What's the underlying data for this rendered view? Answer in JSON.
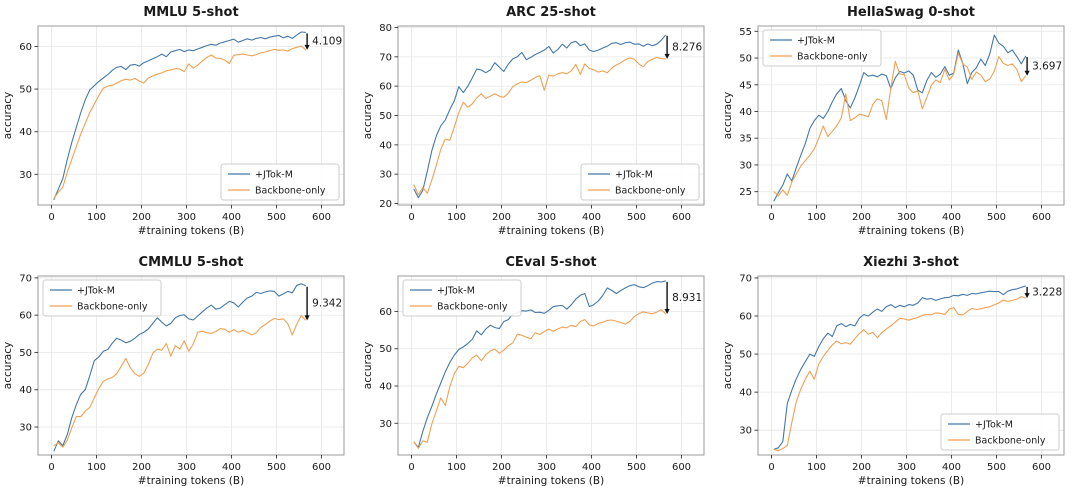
{
  "figure": {
    "xlabel": "#training tokens (B)",
    "ylabel": "accuracy",
    "series_labels": [
      "+JTok-M",
      "Backbone-only"
    ],
    "series_colors": [
      "#4578a8",
      "#f0a154"
    ],
    "grid_color": "#e9e9e9",
    "spine_color": "#9b9b9b",
    "annotation_color": "#111111"
  },
  "chart_data": [
    {
      "type": "line",
      "title": "MMLU 5-shot",
      "xlabel": "#training tokens (B)",
      "ylabel": "accuracy",
      "x": {
        "start": 5,
        "step": 10,
        "count": 57
      },
      "xlim": [
        -30,
        650
      ],
      "ylim": [
        22.8,
        64.8
      ],
      "xticks": [
        0,
        100,
        200,
        300,
        400,
        500,
        600
      ],
      "yticks": [
        30,
        40,
        50,
        60
      ],
      "legend_position": "lower-right",
      "annotation": {
        "label": "4.109",
        "x": 568
      },
      "series": [
        {
          "name": "+JTok-M",
          "color": "#4578a8",
          "y": [
            24.0,
            26.5,
            29.0,
            33.5,
            37.5,
            41.0,
            44.5,
            47.5,
            49.8,
            50.8,
            51.8,
            52.6,
            53.4,
            54.4,
            55.1,
            55.3,
            54.6,
            55.6,
            55.8,
            55.4,
            56.2,
            56.6,
            57.1,
            57.6,
            58.2,
            57.6,
            58.7,
            59.0,
            59.3,
            58.8,
            59.2,
            59.0,
            59.4,
            59.8,
            60.2,
            60.5,
            60.3,
            60.8,
            61.1,
            61.4,
            61.7,
            61.0,
            61.4,
            61.8,
            61.5,
            61.9,
            62.1,
            61.8,
            62.2,
            62.4,
            62.6,
            62.0,
            62.4,
            61.9,
            62.7,
            63.4,
            63.3
          ]
        },
        {
          "name": "Backbone-only",
          "color": "#f0a154",
          "y": [
            24.3,
            25.8,
            27.0,
            30.5,
            33.5,
            36.5,
            39.5,
            42.0,
            44.5,
            46.5,
            48.5,
            50.2,
            50.7,
            50.9,
            51.4,
            52.0,
            52.3,
            52.1,
            52.5,
            51.9,
            51.4,
            52.6,
            53.1,
            53.5,
            53.8,
            54.3,
            54.5,
            54.8,
            54.7,
            54.1,
            55.9,
            54.9,
            55.6,
            56.6,
            57.4,
            58.0,
            57.3,
            57.2,
            56.8,
            56.0,
            57.9,
            58.1,
            58.2,
            58.0,
            57.8,
            58.1,
            58.5,
            58.7,
            59.0,
            59.3,
            59.1,
            59.2,
            58.9,
            59.5,
            59.8,
            60.1,
            59.2
          ]
        }
      ]
    },
    {
      "type": "line",
      "title": "ARC 25-shot",
      "xlabel": "#training tokens (B)",
      "ylabel": "accuracy",
      "x": {
        "start": 5,
        "step": 10,
        "count": 57
      },
      "xlim": [
        -30,
        650
      ],
      "ylim": [
        19.5,
        80.5
      ],
      "xticks": [
        0,
        100,
        200,
        300,
        400,
        500,
        600
      ],
      "yticks": [
        20,
        30,
        40,
        50,
        60,
        70,
        80
      ],
      "legend_position": "lower-right",
      "annotation": {
        "label": "8.276",
        "x": 568
      },
      "series": [
        {
          "name": "+JTok-M",
          "color": "#4578a8",
          "y": [
            25.0,
            22.0,
            24.5,
            31.0,
            38.0,
            43.0,
            46.5,
            48.5,
            52.0,
            55.0,
            59.8,
            57.8,
            60.0,
            62.8,
            65.8,
            65.5,
            64.6,
            65.5,
            68.0,
            66.5,
            65.0,
            67.5,
            69.3,
            70.0,
            71.5,
            69.0,
            69.8,
            70.8,
            71.5,
            72.3,
            73.5,
            71.3,
            72.5,
            74.3,
            73.0,
            74.8,
            75.3,
            73.8,
            74.4,
            72.3,
            71.8,
            72.3,
            73.0,
            73.6,
            74.6,
            74.8,
            74.2,
            74.8,
            75.0,
            74.3,
            74.4,
            73.6,
            74.4,
            73.8,
            74.3,
            75.7,
            77.5
          ]
        },
        {
          "name": "Backbone-only",
          "color": "#f0a154",
          "y": [
            26.5,
            23.0,
            25.5,
            23.5,
            28.0,
            33.0,
            38.5,
            42.0,
            41.5,
            46.0,
            51.0,
            54.5,
            52.8,
            54.0,
            56.0,
            57.4,
            55.8,
            56.6,
            57.4,
            56.6,
            56.2,
            57.6,
            59.8,
            60.8,
            61.4,
            61.2,
            62.0,
            63.0,
            63.6,
            58.6,
            63.8,
            63.4,
            64.2,
            64.6,
            64.2,
            65.2,
            67.4,
            64.0,
            67.6,
            66.0,
            65.6,
            64.8,
            65.2,
            64.6,
            66.2,
            67.2,
            68.0,
            69.0,
            69.6,
            69.2,
            67.6,
            66.6,
            68.4,
            69.2,
            69.8,
            69.4,
            69.3
          ]
        }
      ]
    },
    {
      "type": "line",
      "title": "HellaSwag 0-shot",
      "xlabel": "#training tokens (B)",
      "ylabel": "accuracy",
      "x": {
        "start": 5,
        "step": 10,
        "count": 57
      },
      "xlim": [
        -30,
        650
      ],
      "ylim": [
        22.5,
        56.0
      ],
      "xticks": [
        0,
        100,
        200,
        300,
        400,
        500,
        600
      ],
      "yticks": [
        25,
        30,
        35,
        40,
        45,
        50,
        55
      ],
      "legend_position": "upper-left",
      "annotation": {
        "label": "3.697",
        "x": 568
      },
      "series": [
        {
          "name": "+JTok-M",
          "color": "#4578a8",
          "y": [
            23.2,
            24.8,
            26.2,
            28.3,
            27.0,
            29.5,
            31.8,
            34.0,
            36.8,
            38.3,
            39.3,
            38.7,
            40.0,
            41.8,
            43.3,
            44.3,
            42.0,
            40.7,
            42.5,
            44.8,
            47.3,
            46.6,
            46.8,
            46.5,
            47.0,
            46.7,
            44.3,
            46.3,
            47.5,
            47.2,
            47.6,
            46.8,
            44.0,
            43.5,
            45.8,
            47.3,
            46.4,
            47.0,
            48.4,
            46.8,
            47.2,
            51.5,
            49.0,
            45.2,
            47.3,
            48.2,
            49.8,
            48.6,
            50.8,
            54.3,
            52.8,
            52.2,
            51.0,
            51.5,
            50.3,
            48.9,
            50.4
          ]
        },
        {
          "name": "Backbone-only",
          "color": "#f0a154",
          "y": [
            25.0,
            24.2,
            25.3,
            24.3,
            26.8,
            28.3,
            29.8,
            30.8,
            31.8,
            33.0,
            35.0,
            37.3,
            35.3,
            36.3,
            37.3,
            38.8,
            43.3,
            38.3,
            38.8,
            39.5,
            39.3,
            39.0,
            41.3,
            42.4,
            42.0,
            38.5,
            44.3,
            49.4,
            47.0,
            46.9,
            44.4,
            43.5,
            43.9,
            40.5,
            42.6,
            44.9,
            45.9,
            45.4,
            47.9,
            45.9,
            47.0,
            50.9,
            48.9,
            48.3,
            46.0,
            47.4,
            46.8,
            45.6,
            46.1,
            47.5,
            50.3,
            49.0,
            48.6,
            48.9,
            47.9,
            45.6,
            46.7
          ]
        }
      ]
    },
    {
      "type": "line",
      "title": "CMMLU 5-shot",
      "xlabel": "#training tokens (B)",
      "ylabel": "accuracy",
      "x": {
        "start": 5,
        "step": 10,
        "count": 57
      },
      "xlim": [
        -30,
        650
      ],
      "ylim": [
        22.5,
        70.5
      ],
      "xticks": [
        0,
        100,
        200,
        300,
        400,
        500,
        600
      ],
      "yticks": [
        30,
        40,
        50,
        60,
        70
      ],
      "legend_position": "upper-left",
      "annotation": {
        "label": "9.342",
        "x": 568
      },
      "series": [
        {
          "name": "+JTok-M",
          "color": "#4578a8",
          "y": [
            23.5,
            26.3,
            25.0,
            28.0,
            32.5,
            36.0,
            38.8,
            40.0,
            43.8,
            47.8,
            48.8,
            50.3,
            50.8,
            52.5,
            53.8,
            53.3,
            52.6,
            53.0,
            53.8,
            54.8,
            55.4,
            56.3,
            57.8,
            59.3,
            58.1,
            57.1,
            57.8,
            59.3,
            59.9,
            60.1,
            59.0,
            58.7,
            59.8,
            60.9,
            61.9,
            62.7,
            61.6,
            61.9,
            62.8,
            63.7,
            63.3,
            62.2,
            63.5,
            64.6,
            65.1,
            66.1,
            65.8,
            66.2,
            66.5,
            66.4,
            65.1,
            65.7,
            66.4,
            66.0,
            68.0,
            68.4,
            67.9
          ]
        },
        {
          "name": "Backbone-only",
          "color": "#f0a154",
          "y": [
            25.0,
            25.8,
            24.6,
            26.5,
            29.8,
            32.8,
            32.8,
            34.3,
            35.3,
            37.8,
            40.3,
            42.3,
            42.9,
            43.3,
            44.3,
            46.3,
            48.4,
            45.9,
            44.3,
            43.6,
            44.4,
            46.8,
            49.8,
            50.9,
            50.6,
            52.4,
            49.0,
            51.8,
            50.9,
            53.1,
            50.3,
            52.3,
            55.4,
            55.7,
            55.3,
            55.1,
            55.6,
            56.4,
            56.2,
            55.4,
            56.1,
            55.4,
            55.9,
            55.3,
            54.7,
            55.3,
            56.7,
            57.5,
            58.4,
            59.1,
            58.8,
            59.0,
            57.7,
            54.7,
            57.6,
            59.9,
            58.6
          ]
        }
      ]
    },
    {
      "type": "line",
      "title": "CEval 5-shot",
      "xlabel": "#training tokens (B)",
      "ylabel": "accuracy",
      "x": {
        "start": 5,
        "step": 10,
        "count": 57
      },
      "xlim": [
        -30,
        650
      ],
      "ylim": [
        21.5,
        69.5
      ],
      "xticks": [
        0,
        100,
        200,
        300,
        400,
        500,
        600
      ],
      "yticks": [
        30,
        40,
        50,
        60
      ],
      "legend_position": "upper-left",
      "annotation": {
        "label": "8.931",
        "x": 568
      },
      "series": [
        {
          "name": "+JTok-M",
          "color": "#4578a8",
          "y": [
            25.0,
            23.5,
            27.8,
            31.5,
            34.5,
            37.8,
            40.8,
            43.8,
            46.3,
            48.3,
            49.8,
            50.5,
            51.4,
            52.5,
            54.8,
            53.7,
            55.3,
            56.3,
            55.7,
            55.4,
            57.3,
            57.8,
            59.3,
            59.6,
            60.2,
            60.1,
            60.4,
            59.7,
            59.8,
            59.5,
            60.3,
            61.3,
            61.5,
            61.6,
            60.6,
            61.8,
            63.3,
            64.3,
            64.8,
            61.3,
            61.8,
            62.8,
            64.3,
            66.3,
            65.6,
            64.8,
            65.6,
            66.3,
            66.9,
            67.2,
            66.6,
            66.4,
            66.9,
            67.6,
            68.0,
            67.9,
            68.2
          ]
        },
        {
          "name": "Backbone-only",
          "color": "#f0a154",
          "y": [
            25.0,
            23.3,
            25.3,
            24.9,
            29.8,
            33.3,
            36.8,
            34.8,
            39.8,
            43.3,
            45.3,
            44.9,
            46.1,
            47.6,
            48.3,
            46.8,
            48.4,
            49.4,
            49.9,
            48.8,
            49.6,
            50.8,
            51.6,
            53.9,
            53.6,
            53.1,
            52.7,
            54.3,
            53.8,
            54.6,
            55.3,
            54.7,
            55.3,
            55.8,
            55.6,
            56.3,
            55.9,
            57.3,
            57.8,
            56.4,
            56.1,
            56.8,
            57.1,
            57.6,
            57.7,
            57.4,
            57.0,
            56.6,
            57.3,
            58.6,
            59.4,
            59.9,
            59.6,
            59.4,
            59.8,
            60.5,
            59.3
          ]
        }
      ]
    },
    {
      "type": "line",
      "title": "Xiezhi 3-shot",
      "xlabel": "#training tokens (B)",
      "ylabel": "accuracy",
      "x": {
        "start": 5,
        "step": 10,
        "count": 57
      },
      "xlim": [
        -30,
        650
      ],
      "ylim": [
        23.5,
        70.5
      ],
      "xticks": [
        0,
        100,
        200,
        300,
        400,
        500,
        600
      ],
      "yticks": [
        30,
        40,
        50,
        60,
        70
      ],
      "legend_position": "lower-right",
      "annotation": {
        "label": "3.228",
        "x": 568
      },
      "series": [
        {
          "name": "+JTok-M",
          "color": "#4578a8",
          "y": [
            25.0,
            25.4,
            27.0,
            37.0,
            40.5,
            43.5,
            46.0,
            48.0,
            50.0,
            49.4,
            52.0,
            54.0,
            55.5,
            54.6,
            57.4,
            58.0,
            57.2,
            57.8,
            57.4,
            59.4,
            60.4,
            60.0,
            61.0,
            61.8,
            61.2,
            62.4,
            63.0,
            62.2,
            62.8,
            62.4,
            63.0,
            62.8,
            63.4,
            64.8,
            64.4,
            64.6,
            64.1,
            64.5,
            64.8,
            64.9,
            65.4,
            65.3,
            65.7,
            65.4,
            65.9,
            65.8,
            66.1,
            66.3,
            66.5,
            66.4,
            66.4,
            65.6,
            66.5,
            66.9,
            67.1,
            67.5,
            67.9
          ]
        },
        {
          "name": "Backbone-only",
          "color": "#f0a154",
          "y": [
            25.0,
            24.6,
            25.2,
            26.0,
            32.0,
            37.5,
            40.8,
            43.4,
            45.5,
            43.4,
            47.4,
            49.4,
            50.9,
            52.4,
            53.4,
            52.7,
            53.0,
            52.6,
            54.0,
            55.4,
            56.4,
            55.2,
            55.7,
            54.3,
            55.6,
            56.6,
            57.4,
            58.4,
            59.4,
            59.2,
            58.9,
            59.3,
            59.6,
            60.2,
            60.4,
            60.3,
            60.8,
            60.7,
            60.4,
            61.8,
            62.2,
            60.4,
            60.3,
            61.2,
            62.0,
            61.7,
            61.9,
            62.2,
            62.4,
            62.9,
            63.4,
            64.2,
            63.8,
            64.1,
            64.4,
            65.1,
            64.7
          ]
        }
      ]
    }
  ]
}
